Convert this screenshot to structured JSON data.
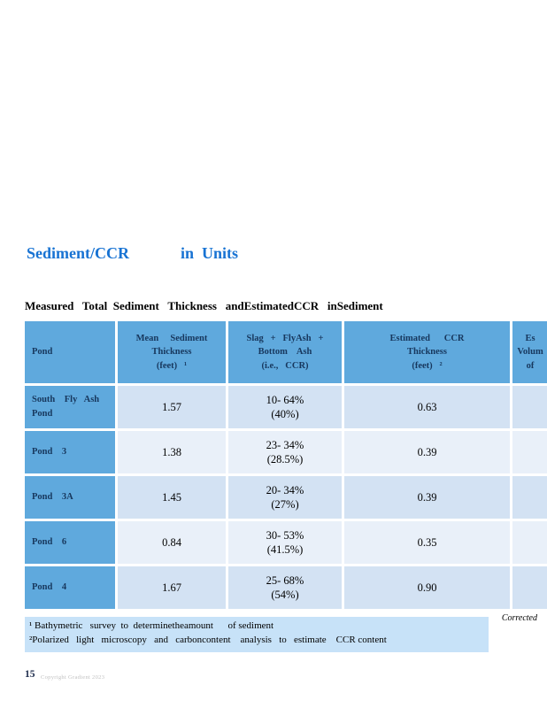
{
  "title": {
    "left": "Sediment/CCR",
    "right": "in  Units"
  },
  "heading": "Measured   Total  Sediment   Thickness   andEstimatedCCR   inSediment",
  "table": {
    "columns": [
      {
        "name": "pond",
        "lines": [
          "Pond"
        ]
      },
      {
        "name": "mean-sediment-thickness",
        "lines": [
          "Mean     Sediment",
          "Thickness",
          "(feet)   ¹"
        ]
      },
      {
        "name": "slag-flyash-bottom-ash",
        "lines": [
          "Slag   +   FlyAsh   +",
          "Bottom    Ash",
          "(i.e.,   CCR)"
        ]
      },
      {
        "name": "estimated-ccr-thickness",
        "lines": [
          "Estimated      CCR",
          "Thickness",
          "(feet)   ²"
        ]
      },
      {
        "name": "estimated-volume-cut",
        "lines": [
          "Es",
          "Volum",
          "of"
        ]
      }
    ],
    "rows": [
      {
        "pond": "South    Fly   Ash\nPond",
        "mean": "1.57",
        "slag": "10- 64%\n(40%)",
        "est": "0.63",
        "vol": ""
      },
      {
        "pond": "Pond    3",
        "mean": "1.38",
        "slag": "23- 34%\n(28.5%)",
        "est": "0.39",
        "vol": ""
      },
      {
        "pond": "Pond    3A",
        "mean": "1.45",
        "slag": "20- 34%\n(27%)",
        "est": "0.39",
        "vol": ""
      },
      {
        "pond": "Pond    6",
        "mean": "0.84",
        "slag": "30- 53%\n(41.5%)",
        "est": "0.35",
        "vol": ""
      },
      {
        "pond": "Pond    4",
        "mean": "1.67",
        "slag": "25- 68%\n(54%)",
        "est": "0.90",
        "vol": ""
      }
    ]
  },
  "footnotes": {
    "line1": "¹ Bathymetric   survey  to  determinetheamount      of sediment",
    "line2": "²Polarized   light   microscopy   and   carboncontent    analysis   to   estimate    CCR content"
  },
  "corrected_label": "Corrected",
  "page": {
    "number": "15",
    "copyright": "Copyright Gradient  2023"
  },
  "colors": {
    "title_blue": "#1873d3",
    "header_blue": "#5fa9dd",
    "row_dark": "#d3e2f3",
    "row_light": "#e9f0f9",
    "footnote_bg": "#c7e2f8",
    "header_text": "#17375d"
  }
}
